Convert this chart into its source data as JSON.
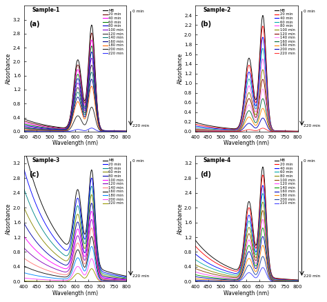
{
  "subplots": [
    {
      "title": "Sample-1",
      "label": "(a)",
      "ylim": [
        0,
        3.6
      ],
      "yticks": [
        0.0,
        0.4,
        0.8,
        1.2,
        1.6,
        2.0,
        2.4,
        2.8,
        3.2
      ],
      "curves": [
        {
          "label": "MB",
          "color": "#000000",
          "peak": 3.05,
          "shoulder": 2.02,
          "base": 0.12
        },
        {
          "label": "20 min",
          "color": "#6B0000",
          "peak": 2.82,
          "shoulder": 1.88,
          "base": 0.11
        },
        {
          "label": "40 min",
          "color": "#FF00FF",
          "peak": 2.62,
          "shoulder": 1.75,
          "base": 0.1
        },
        {
          "label": "60 min",
          "color": "#008000",
          "peak": 2.45,
          "shoulder": 1.62,
          "base": 0.09
        },
        {
          "label": "80 min",
          "color": "#0000CC",
          "peak": 2.28,
          "shoulder": 1.5,
          "base": 0.08
        },
        {
          "label": "100 min",
          "color": "#7700CC",
          "peak": 2.1,
          "shoulder": 1.38,
          "base": 0.07
        },
        {
          "label": "120 min",
          "color": "#333333",
          "peak": 1.9,
          "shoulder": 1.25,
          "base": 0.06
        },
        {
          "label": "140 min",
          "color": "#007777",
          "peak": 1.7,
          "shoulder": 1.12,
          "base": 0.06
        },
        {
          "label": "160 min",
          "color": "#000088",
          "peak": 1.5,
          "shoulder": 0.98,
          "base": 0.05
        },
        {
          "label": "180 min",
          "color": "#FF6600",
          "peak": 1.3,
          "shoulder": 0.85,
          "base": 0.05
        },
        {
          "label": "200 min",
          "color": "#222222",
          "peak": 0.7,
          "shoulder": 0.45,
          "base": 0.04
        },
        {
          "label": "220 min",
          "color": "#3333FF",
          "peak": 0.1,
          "shoulder": 0.06,
          "base": 0.02
        }
      ]
    },
    {
      "title": "Sample-2",
      "label": "(b)",
      "ylim": [
        0,
        2.6
      ],
      "yticks": [
        0.0,
        0.2,
        0.4,
        0.6,
        0.8,
        1.0,
        1.2,
        1.4,
        1.6,
        1.8,
        2.0,
        2.2,
        2.4
      ],
      "curves": [
        {
          "label": "MB",
          "color": "#000000",
          "peak": 2.4,
          "shoulder": 1.5,
          "base": 0.08
        },
        {
          "label": "20 min",
          "color": "#FF0000",
          "peak": 2.18,
          "shoulder": 1.36,
          "base": 0.07
        },
        {
          "label": "40 min",
          "color": "#0000FF",
          "peak": 1.95,
          "shoulder": 1.22,
          "base": 0.06
        },
        {
          "label": "60 min",
          "color": "#00AAAA",
          "peak": 1.72,
          "shoulder": 1.08,
          "base": 0.05
        },
        {
          "label": "80 min",
          "color": "#FF44FF",
          "peak": 1.5,
          "shoulder": 0.94,
          "base": 0.04
        },
        {
          "label": "100 min",
          "color": "#888800",
          "peak": 1.28,
          "shoulder": 0.8,
          "base": 0.04
        },
        {
          "label": "120 min",
          "color": "#880000",
          "peak": 1.08,
          "shoulder": 0.68,
          "base": 0.03
        },
        {
          "label": "140 min",
          "color": "#FF88FF",
          "peak": 0.88,
          "shoulder": 0.55,
          "base": 0.03
        },
        {
          "label": "160 min",
          "color": "#006633",
          "peak": 0.68,
          "shoulder": 0.43,
          "base": 0.02
        },
        {
          "label": "180 min",
          "color": "#FF8800",
          "peak": 0.48,
          "shoulder": 0.3,
          "base": 0.02
        },
        {
          "label": "200 min",
          "color": "#0000BB",
          "peak": 0.28,
          "shoulder": 0.17,
          "base": 0.01
        },
        {
          "label": "220 min",
          "color": "#FF3333",
          "peak": 0.07,
          "shoulder": 0.04,
          "base": 0.005
        }
      ]
    },
    {
      "title": "Sample-3",
      "label": "(c)",
      "ylim": [
        0,
        3.4
      ],
      "yticks": [
        0.0,
        0.4,
        0.8,
        1.2,
        1.6,
        2.0,
        2.4,
        2.8,
        3.2
      ],
      "curves": [
        {
          "label": "MB",
          "color": "#000000",
          "peak": 3.02,
          "shoulder": 2.12,
          "base": 1.42
        },
        {
          "label": "20 min",
          "color": "#0000FF",
          "peak": 2.8,
          "shoulder": 1.95,
          "base": 1.25
        },
        {
          "label": "40 min",
          "color": "#008888",
          "peak": 2.58,
          "shoulder": 1.8,
          "base": 1.1
        },
        {
          "label": "60 min",
          "color": "#888800",
          "peak": 2.35,
          "shoulder": 1.62,
          "base": 0.95
        },
        {
          "label": "80 min",
          "color": "#0000AA",
          "peak": 2.12,
          "shoulder": 1.45,
          "base": 0.82
        },
        {
          "label": "100 min",
          "color": "#FF00FF",
          "peak": 1.9,
          "shoulder": 1.3,
          "base": 0.7
        },
        {
          "label": "120 min",
          "color": "#8800BB",
          "peak": 1.68,
          "shoulder": 1.15,
          "base": 0.58
        },
        {
          "label": "140 min",
          "color": "#FF7777",
          "peak": 1.45,
          "shoulder": 0.98,
          "base": 0.46
        },
        {
          "label": "160 min",
          "color": "#111111",
          "peak": 1.22,
          "shoulder": 0.82,
          "base": 0.36
        },
        {
          "label": "180 min",
          "color": "#0088FF",
          "peak": 0.95,
          "shoulder": 0.62,
          "base": 0.26
        },
        {
          "label": "200 min",
          "color": "#FF44FF",
          "peak": 0.62,
          "shoulder": 0.4,
          "base": 0.16
        },
        {
          "label": "220 min",
          "color": "#999900",
          "peak": 0.35,
          "shoulder": 0.22,
          "base": 0.04
        }
      ]
    },
    {
      "title": "Sample-4",
      "label": "(d)",
      "ylim": [
        0,
        3.4
      ],
      "yticks": [
        0.0,
        0.4,
        0.8,
        1.2,
        1.6,
        2.0,
        2.4,
        2.8,
        3.2
      ],
      "curves": [
        {
          "label": "MB",
          "color": "#000000",
          "peak": 3.1,
          "shoulder": 2.05,
          "base": 0.38
        },
        {
          "label": "20 min",
          "color": "#FF0000",
          "peak": 2.88,
          "shoulder": 1.9,
          "base": 0.35
        },
        {
          "label": "40 min",
          "color": "#0000FF",
          "peak": 2.6,
          "shoulder": 1.72,
          "base": 0.3
        },
        {
          "label": "60 min",
          "color": "#00AAAA",
          "peak": 2.38,
          "shoulder": 1.58,
          "base": 0.26
        },
        {
          "label": "80 min",
          "color": "#888800",
          "peak": 2.15,
          "shoulder": 1.42,
          "base": 0.22
        },
        {
          "label": "100 min",
          "color": "#884400",
          "peak": 1.92,
          "shoulder": 1.26,
          "base": 0.19
        },
        {
          "label": "120 min",
          "color": "#FF44FF",
          "peak": 1.68,
          "shoulder": 1.1,
          "base": 0.16
        },
        {
          "label": "140 min",
          "color": "#009900",
          "peak": 1.45,
          "shoulder": 0.96,
          "base": 0.13
        },
        {
          "label": "160 min",
          "color": "#0000BB",
          "peak": 1.22,
          "shoulder": 0.8,
          "base": 0.11
        },
        {
          "label": "180 min",
          "color": "#FF8800",
          "peak": 0.98,
          "shoulder": 0.62,
          "base": 0.08
        },
        {
          "label": "200 min",
          "color": "#224499",
          "peak": 0.68,
          "shoulder": 0.44,
          "base": 0.06
        },
        {
          "label": "220 min",
          "color": "#4444FF",
          "peak": 0.38,
          "shoulder": 0.24,
          "base": 0.04
        }
      ]
    }
  ],
  "wavelength_range": [
    400,
    800
  ],
  "xlabel": "Wavelength (nm)",
  "ylabel": "Absorbance",
  "peak_wl": 664,
  "shoulder_wl": 610
}
